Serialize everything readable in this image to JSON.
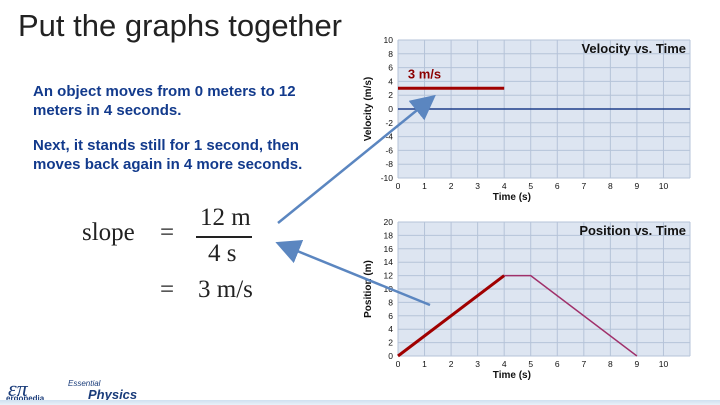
{
  "slide": {
    "title": "Put the graphs together",
    "paragraph1": "An object moves from 0 meters to 12 meters in 4 seconds.",
    "paragraph2": "Next, it stands still for 1 second, then moves back again in 4 more seconds."
  },
  "equation": {
    "lhs": "slope",
    "eq1": "=",
    "numerator": "12 m",
    "denominator": "4 s",
    "eq2": "=",
    "result": "3 m/s"
  },
  "footer": {
    "logo_symbol": "επ",
    "logo_text": "ergopedia",
    "essential": "Essential",
    "physics": "Physics"
  },
  "colors": {
    "text_blue": "#123a8c",
    "plot_bg": "#dde5f1",
    "data_red": "#a00000",
    "zero_line_blue": "#1f3f8a",
    "arrow_blue": "#5b86c0",
    "secondary_line": "#a0306a"
  },
  "chart_data": [
    {
      "type": "line",
      "title": "Velocity vs. Time",
      "xlabel": "Time (s)",
      "ylabel": "Velocity (m/s)",
      "xlim": [
        0,
        11
      ],
      "ylim": [
        -10,
        10
      ],
      "xticks": [
        0,
        1,
        2,
        3,
        4,
        5,
        6,
        7,
        8,
        9,
        10
      ],
      "yticks": [
        10,
        8,
        6,
        4,
        2,
        0,
        -2,
        -4,
        -6,
        -8,
        -10
      ],
      "grid": true,
      "annotation": "3 m/s",
      "series": [
        {
          "values": [
            [
              0,
              3
            ],
            [
              4,
              3
            ]
          ],
          "color": "#a00000"
        },
        {
          "values": [
            [
              0,
              0
            ],
            [
              11,
              0
            ]
          ],
          "color": "#1f3f8a"
        }
      ]
    },
    {
      "type": "line",
      "title": "Position vs. Time",
      "xlabel": "Time (s)",
      "ylabel": "Position (m)",
      "xlim": [
        0,
        11
      ],
      "ylim": [
        0,
        20
      ],
      "xticks": [
        0,
        1,
        2,
        3,
        4,
        5,
        6,
        7,
        8,
        9,
        10
      ],
      "yticks": [
        20,
        18,
        16,
        14,
        12,
        10,
        8,
        6,
        4,
        2,
        0
      ],
      "grid": true,
      "series": [
        {
          "values": [
            [
              0,
              0
            ],
            [
              4,
              12
            ]
          ],
          "color": "#a00000"
        },
        {
          "values": [
            [
              4,
              12
            ],
            [
              5,
              12
            ],
            [
              9,
              0
            ]
          ],
          "color": "#a0306a"
        }
      ]
    }
  ]
}
